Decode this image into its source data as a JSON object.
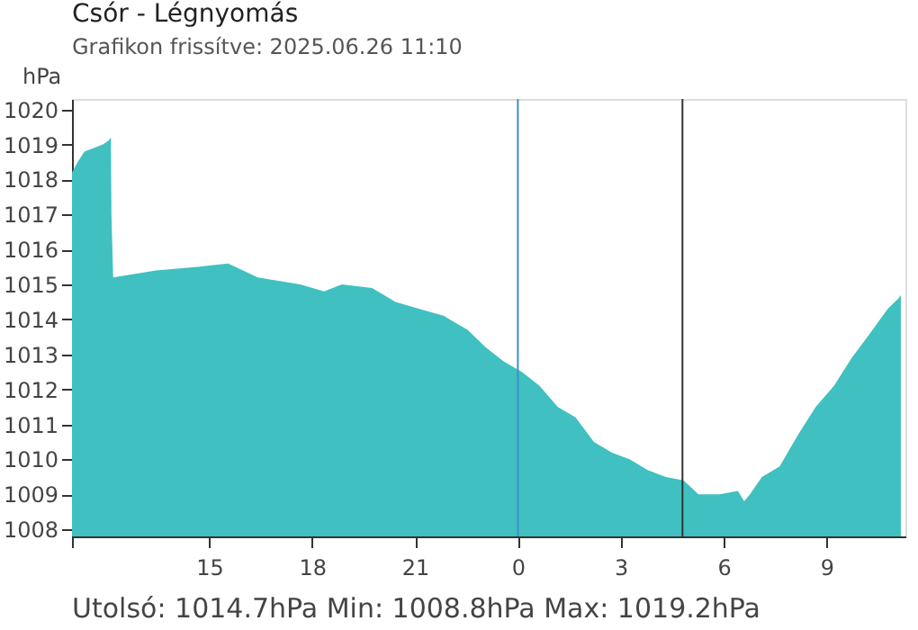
{
  "chart_data": {
    "type": "area",
    "title": "Csór - Légnyomás",
    "subtitle": "Grafikon frissítve: 2025.06.26 11:10",
    "ylabel": "hPa",
    "x": [
      "2025-06-25T11:00",
      "2025-06-25T11:10",
      "2025-06-25T11:22",
      "2025-06-25T11:38",
      "2025-06-25T11:54",
      "2025-06-25T12:03",
      "2025-06-25T12:08",
      "2025-06-25T12:09",
      "2025-06-25T12:12",
      "2025-06-25T13:27",
      "2025-06-25T14:40",
      "2025-06-25T15:33",
      "2025-06-25T16:25",
      "2025-06-25T17:39",
      "2025-06-25T18:21",
      "2025-06-25T18:52",
      "2025-06-25T19:45",
      "2025-06-25T20:26",
      "2025-06-25T21:08",
      "2025-06-25T21:51",
      "2025-06-25T22:01",
      "2025-06-25T22:32",
      "2025-06-25T23:04",
      "2025-06-25T23:35",
      "2025-06-26T00:07",
      "2025-06-26T00:38",
      "2025-06-26T01:10",
      "2025-06-26T01:41",
      "2025-06-26T02:13",
      "2025-06-26T02:44",
      "2025-06-26T03:16",
      "2025-06-26T03:47",
      "2025-06-26T04:19",
      "2025-06-26T04:50",
      "2025-06-26T05:16",
      "2025-06-26T05:53",
      "2025-06-26T06:25",
      "2025-06-26T06:36",
      "2025-06-26T06:46",
      "2025-06-26T07:07",
      "2025-06-26T07:38",
      "2025-06-26T08:10",
      "2025-06-26T08:41",
      "2025-06-26T09:13",
      "2025-06-26T09:44",
      "2025-06-26T10:16",
      "2025-06-26T10:47",
      "2025-06-26T11:06",
      "2025-06-26T11:10"
    ],
    "series": [
      {
        "color": "#40c0c0",
        "values": [
          1018.2,
          1018.5,
          1018.8,
          1018.9,
          1019.0,
          1019.1,
          1019.2,
          1017.0,
          1015.2,
          1015.4,
          1015.5,
          1015.6,
          1015.2,
          1015.0,
          1014.8,
          1015.0,
          1014.9,
          1014.5,
          1014.3,
          1014.1,
          1014.0,
          1013.7,
          1013.2,
          1012.8,
          1012.5,
          1012.1,
          1011.5,
          1011.2,
          1010.5,
          1010.2,
          1010.0,
          1009.7,
          1009.5,
          1009.4,
          1009.0,
          1009.0,
          1009.1,
          1008.8,
          1009.0,
          1009.5,
          1009.8,
          1010.7,
          1011.5,
          1012.1,
          1012.9,
          1013.6,
          1014.3,
          1014.6,
          1014.7
        ]
      }
    ],
    "xlim": [
      "2025-06-25T11:00",
      "2025-06-26T11:18"
    ],
    "ylim": [
      1007.8,
      1020.3
    ],
    "xticks": [
      {
        "value": "2025-06-25T11:00",
        "label": null
      },
      {
        "value": "2025-06-25T15:00",
        "label": "15"
      },
      {
        "value": "2025-06-25T18:00",
        "label": "18"
      },
      {
        "value": "2025-06-25T21:00",
        "label": "21"
      },
      {
        "value": "2025-06-26T00:00",
        "label": "0"
      },
      {
        "value": "2025-06-26T03:00",
        "label": "3"
      },
      {
        "value": "2025-06-26T06:00",
        "label": "6"
      },
      {
        "value": "2025-06-26T09:00",
        "label": "9"
      }
    ],
    "yticks": [
      1008,
      1009,
      1010,
      1011,
      1012,
      1013,
      1014,
      1015,
      1016,
      1017,
      1018,
      1019,
      1020
    ],
    "ref_lines": [
      {
        "axis": "x",
        "value": "2025-06-26T00:00",
        "color": "#3a8fd0"
      },
      {
        "axis": "x",
        "value": "2025-06-26T04:48",
        "color": "#333333"
      }
    ],
    "grid": false,
    "annotations": [
      "Utolsó: 1014.7hPa   Min: 1008.8hPa   Max: 1019.2hPa"
    ]
  }
}
